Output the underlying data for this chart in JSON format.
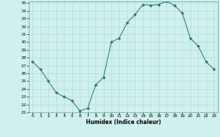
{
  "x": [
    0,
    1,
    2,
    3,
    4,
    5,
    6,
    7,
    8,
    9,
    10,
    11,
    12,
    13,
    14,
    15,
    16,
    17,
    18,
    19,
    20,
    21,
    22,
    23
  ],
  "y": [
    27.5,
    26.5,
    25.0,
    23.5,
    23.0,
    22.5,
    21.2,
    21.5,
    24.5,
    25.5,
    30.0,
    30.5,
    32.5,
    33.5,
    34.8,
    34.7,
    34.8,
    35.2,
    34.7,
    33.7,
    30.5,
    29.5,
    27.5,
    26.5
  ],
  "line_color": "#2e7d6e",
  "marker_color": "#2e7d6e",
  "bg_color": "#cff0ec",
  "grid_color": "#aedbd6",
  "xlabel": "Humidex (Indice chaleur)",
  "ylim": [
    21,
    35
  ],
  "xlim": [
    -0.5,
    23.5
  ],
  "ytick_min": 21,
  "ytick_max": 35,
  "xtick_labels": [
    "0",
    "1",
    "2",
    "3",
    "4",
    "5",
    "6",
    "7",
    "8",
    "9",
    "10",
    "11",
    "12",
    "13",
    "14",
    "15",
    "16",
    "17",
    "18",
    "19",
    "20",
    "21",
    "22",
    "23"
  ]
}
